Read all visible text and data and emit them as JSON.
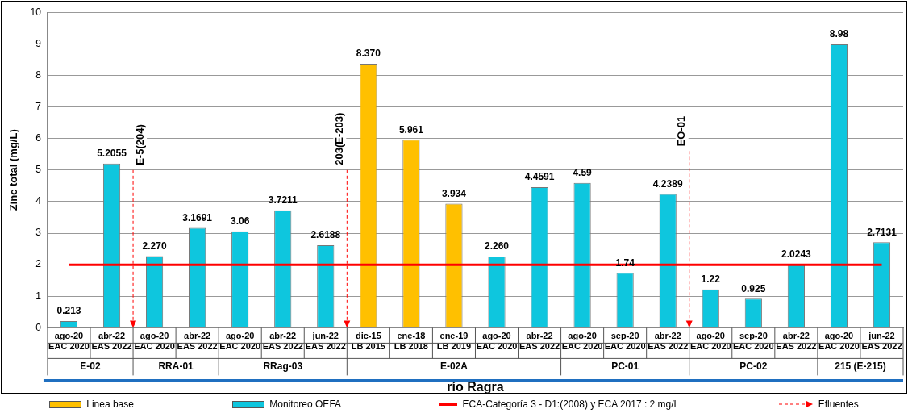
{
  "chart_data": {
    "type": "bar",
    "ylabel": "Zinc total (mg/L)",
    "xlabel": "río Ragra",
    "categories": [
      "ago-20\nEAC 2020",
      "abr-22\nEAS 2022",
      "ago-20\nEAC 2020",
      "abr-22\nEAS 2022",
      "ago-20\nEAC 2020",
      "abr-22\nEAS 2022",
      "jun-22\nEAS 2022",
      "dic-15\nLB 2015",
      "ene-18\nLB 2018",
      "ene-19\nLB 2019",
      "ago-20\nEAC 2020",
      "abr-22\nEAS 2022",
      "ago-20\nEAC 2020",
      "sep-20\nEAC 2020",
      "abr-22\nEAS 2022",
      "ago-20\nEAC 2020",
      "sep-20\nEAC 2020",
      "abr-22\nEAS 2022",
      "ago-20\nEAC 2020",
      "jun-22\nEAS 2022"
    ],
    "series": [
      {
        "name": "Linea base",
        "color": "#ffc000",
        "values": [
          null,
          null,
          null,
          null,
          null,
          null,
          null,
          8.37,
          5.961,
          3.934,
          null,
          null,
          null,
          null,
          null,
          null,
          null,
          null,
          null,
          null
        ],
        "value_labels": [
          null,
          null,
          null,
          null,
          null,
          null,
          null,
          "8.370",
          "5.961",
          "3.934",
          null,
          null,
          null,
          null,
          null,
          null,
          null,
          null,
          null,
          null
        ]
      },
      {
        "name": "Monitoreo OEFA",
        "color": "#0ec6de",
        "values": [
          0.213,
          5.2055,
          2.27,
          3.1691,
          3.06,
          3.7211,
          2.6188,
          null,
          null,
          null,
          2.26,
          4.4591,
          4.59,
          1.74,
          4.2389,
          1.22,
          0.925,
          2.0243,
          8.98,
          2.7131
        ],
        "value_labels": [
          "0.213",
          "5.2055",
          "2.270",
          "3.1691",
          "3.06",
          "3.7211",
          "2.6188",
          null,
          null,
          null,
          "2.260",
          "4.4591",
          "4.59",
          "1.74",
          "4.2389",
          "1.22",
          "0.925",
          "2.0243",
          "8.98",
          "2.7131"
        ]
      }
    ],
    "ylim": [
      0,
      10
    ],
    "yticks": [
      0,
      1,
      2,
      3,
      4,
      5,
      6,
      7,
      8,
      9,
      10
    ],
    "grid": "y",
    "legend": "bottom",
    "ref_lines": [
      {
        "axis": "y",
        "value": 2,
        "label": "ECA-Categoría 3 - D1:(2008) y ECA 2017 : 2 mg/L",
        "color": "#ff0000"
      }
    ],
    "annotations": [
      "E-02",
      "RRA-01",
      "RRag-03",
      "E-02A",
      "PC-01",
      "PC-02",
      "215 (E-215)",
      "E-5(204)",
      "203(E-203)",
      "EO-01",
      "Efluentes"
    ]
  }
}
